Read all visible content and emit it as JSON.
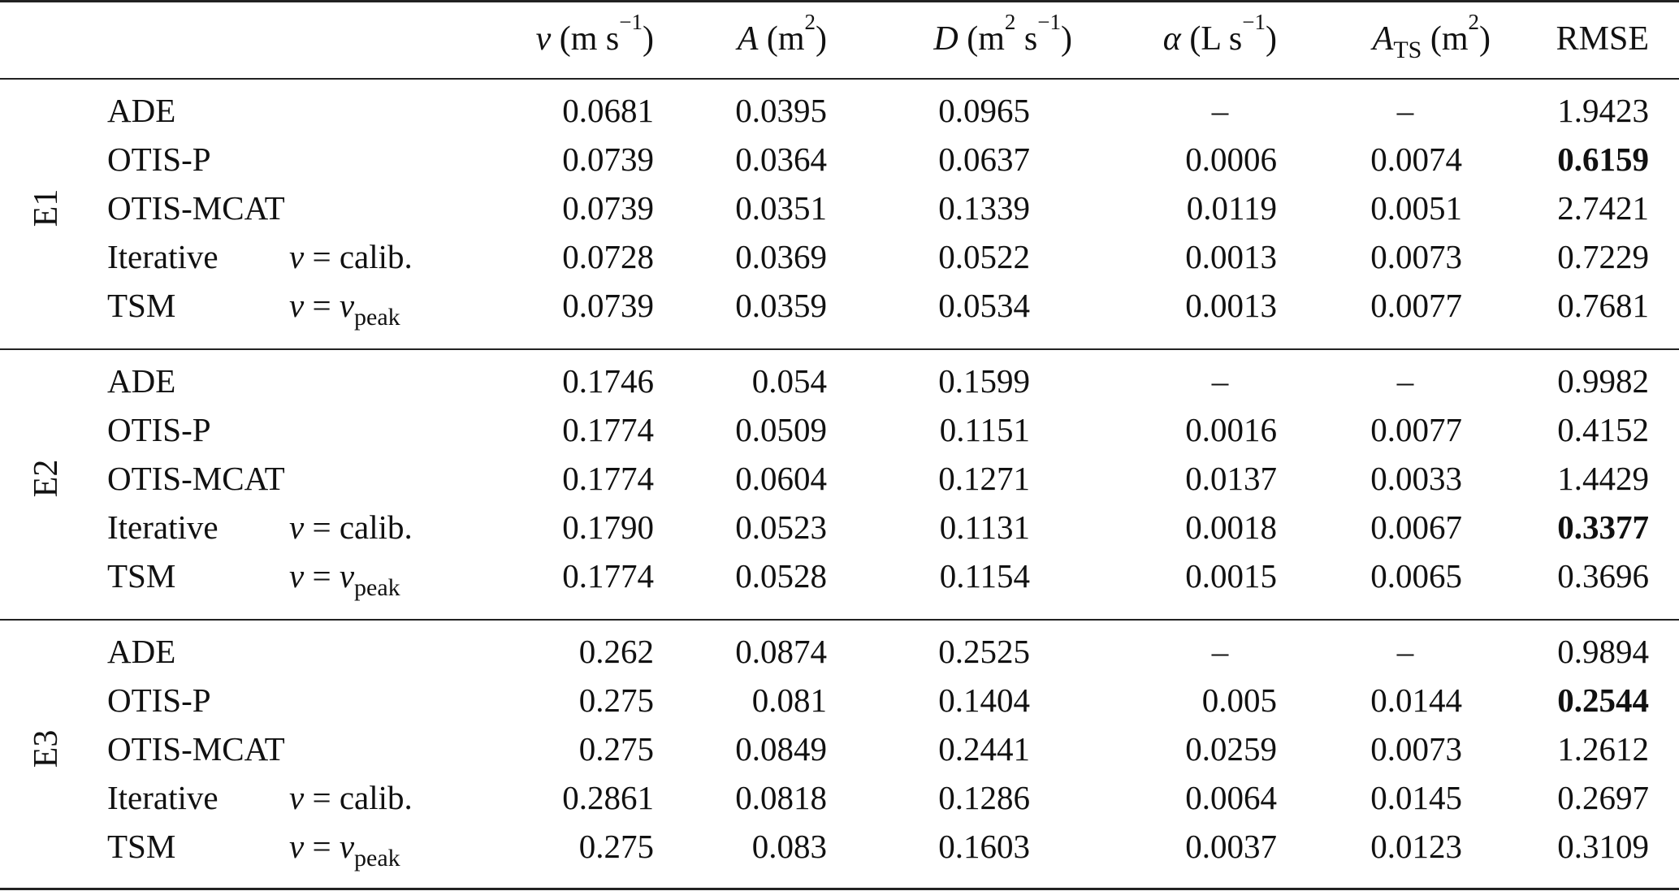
{
  "table": {
    "headers": {
      "v": {
        "sym": "v",
        "unit": "(m s",
        "exp": "−1",
        "close": ")"
      },
      "A": {
        "sym": "A",
        "unit": "(m",
        "exp": "2",
        "close": ")"
      },
      "D": {
        "sym": "D",
        "unit": "(m",
        "exp": "2",
        "mid": " s",
        "exp2": "−1",
        "close": ")"
      },
      "alpha": {
        "sym": "α",
        "unit": "(L s",
        "exp": "−1",
        "close": ")"
      },
      "ats": {
        "sym": "A",
        "sub": "TS",
        "unit": "(m",
        "exp": "2",
        "close": ")"
      },
      "rmse": "RMSE"
    },
    "groups": [
      {
        "label": "E1",
        "rows": [
          {
            "method": "ADE",
            "note": "",
            "v": "0.0681",
            "A": "0.0395",
            "D": "0.0965",
            "alpha": "–",
            "ats": "–",
            "rmse": "1.9423",
            "best": false
          },
          {
            "method": "OTIS-P",
            "note": "",
            "v": "0.0739",
            "A": "0.0364",
            "D": "0.0637",
            "alpha": "0.0006",
            "ats": "0.0074",
            "rmse": "0.6159",
            "best": true
          },
          {
            "method": "OTIS-MCAT",
            "note": "",
            "v": "0.0739",
            "A": "0.0351",
            "D": "0.1339",
            "alpha": "0.0119",
            "ats": "0.0051",
            "rmse": "2.7421",
            "best": false
          },
          {
            "method": "Iterative",
            "note": "calib",
            "v": "0.0728",
            "A": "0.0369",
            "D": "0.0522",
            "alpha": "0.0013",
            "ats": "0.0073",
            "rmse": "0.7229",
            "best": false
          },
          {
            "method": "TSM",
            "note": "peak",
            "v": "0.0739",
            "A": "0.0359",
            "D": "0.0534",
            "alpha": "0.0013",
            "ats": "0.0077",
            "rmse": "0.7681",
            "best": false
          }
        ]
      },
      {
        "label": "E2",
        "rows": [
          {
            "method": "ADE",
            "note": "",
            "v": "0.1746",
            "A": "0.054",
            "D": "0.1599",
            "alpha": "–",
            "ats": "–",
            "rmse": "0.9982",
            "best": false
          },
          {
            "method": "OTIS-P",
            "note": "",
            "v": "0.1774",
            "A": "0.0509",
            "D": "0.1151",
            "alpha": "0.0016",
            "ats": "0.0077",
            "rmse": "0.4152",
            "best": false
          },
          {
            "method": "OTIS-MCAT",
            "note": "",
            "v": "0.1774",
            "A": "0.0604",
            "D": "0.1271",
            "alpha": "0.0137",
            "ats": "0.0033",
            "rmse": "1.4429",
            "best": false
          },
          {
            "method": "Iterative",
            "note": "calib",
            "v": "0.1790",
            "A": "0.0523",
            "D": "0.1131",
            "alpha": "0.0018",
            "ats": "0.0067",
            "rmse": "0.3377",
            "best": true
          },
          {
            "method": "TSM",
            "note": "peak",
            "v": "0.1774",
            "A": "0.0528",
            "D": "0.1154",
            "alpha": "0.0015",
            "ats": "0.0065",
            "rmse": "0.3696",
            "best": false
          }
        ]
      },
      {
        "label": "E3",
        "rows": [
          {
            "method": "ADE",
            "note": "",
            "v": "0.262",
            "A": "0.0874",
            "D": "0.2525",
            "alpha": "–",
            "ats": "–",
            "rmse": "0.9894",
            "best": false
          },
          {
            "method": "OTIS-P",
            "note": "",
            "v": "0.275",
            "A": "0.081",
            "D": "0.1404",
            "alpha": "0.005",
            "ats": "0.0144",
            "rmse": "0.2544",
            "best": true
          },
          {
            "method": "OTIS-MCAT",
            "note": "",
            "v": "0.275",
            "A": "0.0849",
            "D": "0.2441",
            "alpha": "0.0259",
            "ats": "0.0073",
            "rmse": "1.2612",
            "best": false
          },
          {
            "method": "Iterative",
            "note": "calib",
            "v": "0.2861",
            "A": "0.0818",
            "D": "0.1286",
            "alpha": "0.0064",
            "ats": "0.0145",
            "rmse": "0.2697",
            "best": false
          },
          {
            "method": "TSM",
            "note": "peak",
            "v": "0.275",
            "A": "0.083",
            "D": "0.1603",
            "alpha": "0.0037",
            "ats": "0.0123",
            "rmse": "0.3109",
            "best": false
          }
        ]
      }
    ],
    "notes": {
      "calib": {
        "lhs": "v",
        "eq": " = ",
        "rhs": "calib."
      },
      "peak": {
        "lhs": "v",
        "eq": " = ",
        "rhs": "v",
        "sub": "peak"
      }
    }
  }
}
